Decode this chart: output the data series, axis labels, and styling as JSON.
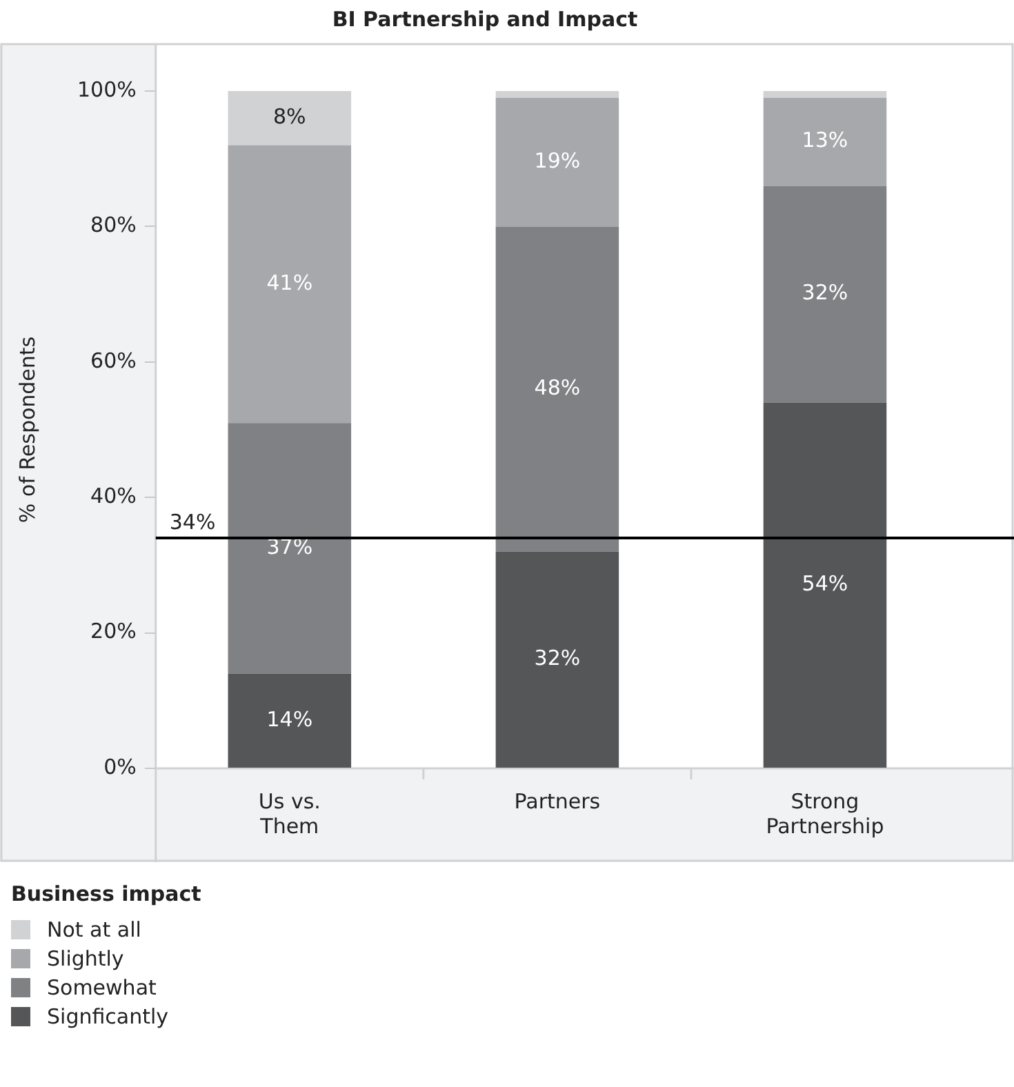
{
  "chart_data": {
    "type": "bar",
    "title": "BI Partnership and Impact",
    "ylabel": "% of Respondents",
    "legend_title": "Business impact",
    "categories": [
      "Us vs. Them",
      "Partners",
      "Strong Partnership"
    ],
    "stacked": true,
    "legend": "bottom left",
    "grid": false,
    "ylim": [
      0,
      100
    ],
    "yticks": [
      {
        "value": 0,
        "label": "0%"
      },
      {
        "value": 20,
        "label": "20%"
      },
      {
        "value": 40,
        "label": "40%"
      },
      {
        "value": 60,
        "label": "60%"
      },
      {
        "value": 80,
        "label": "80%"
      },
      {
        "value": 100,
        "label": "100%"
      }
    ],
    "series": [
      {
        "name": "Signficantly",
        "color": "#555658",
        "values": [
          14,
          32,
          54
        ],
        "value_labels": [
          "14%",
          "32%",
          "54%"
        ]
      },
      {
        "name": "Somewhat",
        "color": "#808184",
        "values": [
          37,
          48,
          32
        ],
        "value_labels": [
          "37%",
          "48%",
          "32%"
        ]
      },
      {
        "name": "Slightly",
        "color": "#a7a8ab",
        "values": [
          41,
          19,
          13
        ],
        "value_labels": [
          "41%",
          "19%",
          "13%"
        ]
      },
      {
        "name": "Not at all",
        "color": "#d1d2d4",
        "values": [
          8,
          1,
          1
        ],
        "value_labels": [
          "8%",
          null,
          null
        ]
      }
    ],
    "ref_lines": [
      {
        "axis": "y",
        "value": 34,
        "label": "34%",
        "color": "#000000"
      }
    ]
  }
}
